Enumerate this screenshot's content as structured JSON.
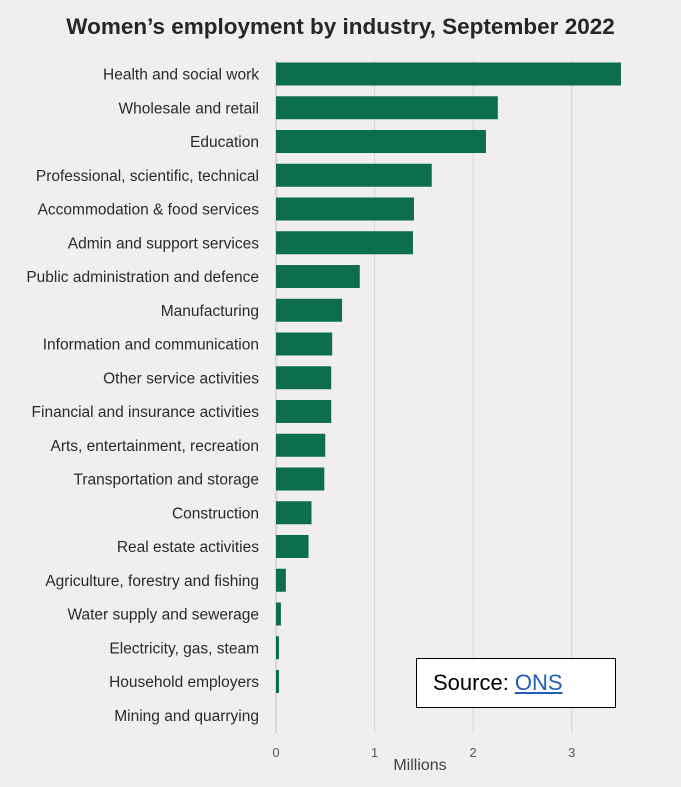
{
  "colors": {
    "bar": "#0d6e4e",
    "background": "#f0efed",
    "gridline": "#d6d6d6"
  },
  "chart_data": {
    "type": "bar",
    "orientation": "horizontal",
    "title": "Women’s employment by industry, September 2022",
    "xlabel": "Millions",
    "ylabel": "",
    "xlim": [
      0,
      3.5
    ],
    "x_ticks": [
      0,
      1,
      2,
      3
    ],
    "grid": true,
    "categories": [
      "Health and social work",
      "Wholesale and retail",
      "Education",
      "Professional, scientific, technical",
      "Accommodation & food services",
      "Admin and support services",
      "Public administration and defence",
      "Manufacturing",
      "Information and communication",
      "Other service activities",
      "Financial and insurance activities",
      "Arts, entertainment, recreation",
      "Transportation and storage",
      "Construction",
      "Real estate activities",
      "Agriculture, forestry and fishing",
      "Water supply and sewerage",
      "Electricity, gas, steam",
      "Household employers",
      "Mining and quarrying"
    ],
    "values": [
      3.5,
      2.25,
      2.13,
      1.58,
      1.4,
      1.39,
      0.85,
      0.67,
      0.57,
      0.56,
      0.56,
      0.5,
      0.49,
      0.36,
      0.33,
      0.1,
      0.05,
      0.03,
      0.03,
      0.0
    ]
  },
  "source": {
    "label": "Source:",
    "link_text": "ONS"
  }
}
